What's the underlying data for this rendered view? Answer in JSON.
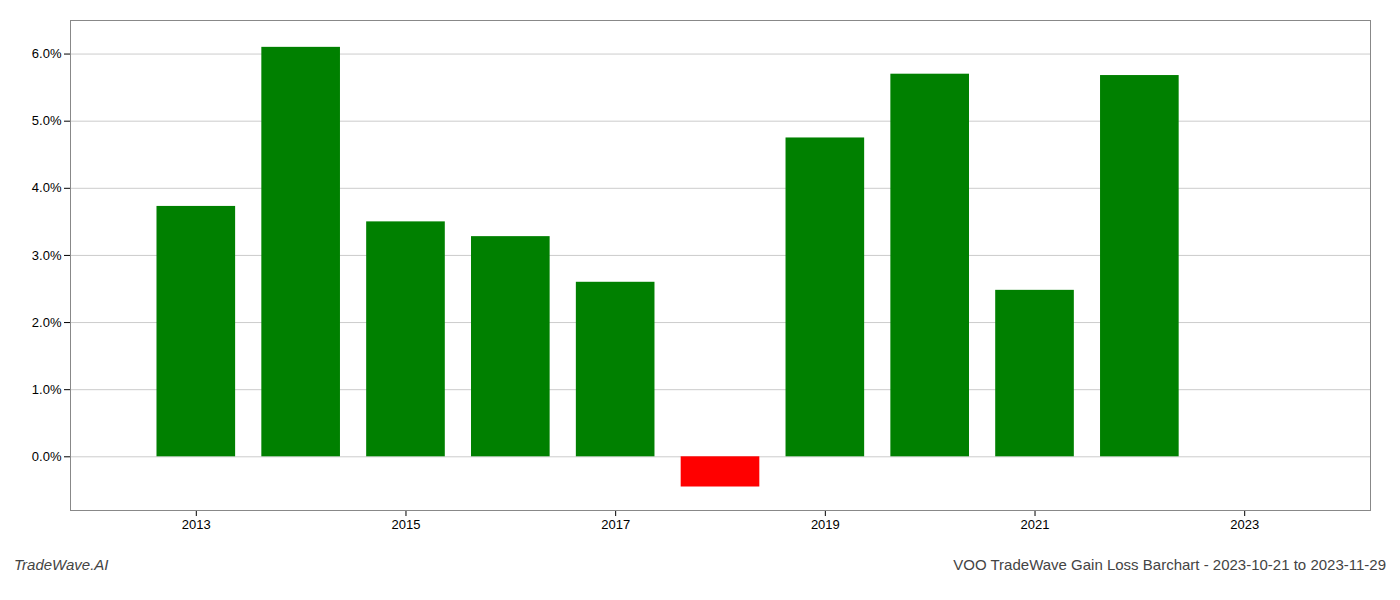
{
  "chart_data": {
    "type": "bar",
    "title": "VOO TradeWave Gain Loss Barchart - 2023-10-21 to 2023-11-29",
    "annotations": [
      "TradeWave.AI"
    ],
    "x": [
      2013,
      2014,
      2015,
      2016,
      2017,
      2018,
      2019,
      2020,
      2021,
      2022,
      2023
    ],
    "values": [
      0.0373,
      0.061,
      0.035,
      0.0328,
      0.026,
      -0.0045,
      0.0475,
      0.057,
      0.0248,
      0.0568,
      0.0
    ],
    "colors": [
      "#008000",
      "#008000",
      "#008000",
      "#008000",
      "#008000",
      "#ff0000",
      "#008000",
      "#008000",
      "#008000",
      "#008000",
      "#008000"
    ],
    "xlim": [
      2011.8,
      2024.2
    ],
    "xticks": [
      2013,
      2015,
      2017,
      2019,
      2021,
      2023
    ],
    "ylim": [
      -0.008,
      0.065
    ],
    "yticks": [
      {
        "value": 0.0,
        "label": "0.0%"
      },
      {
        "value": 0.01,
        "label": "1.0%"
      },
      {
        "value": 0.02,
        "label": "2.0%"
      },
      {
        "value": 0.03,
        "label": "3.0%"
      },
      {
        "value": 0.04,
        "label": "4.0%"
      },
      {
        "value": 0.05,
        "label": "5.0%"
      },
      {
        "value": 0.06,
        "label": "6.0%"
      }
    ],
    "grid": true
  }
}
